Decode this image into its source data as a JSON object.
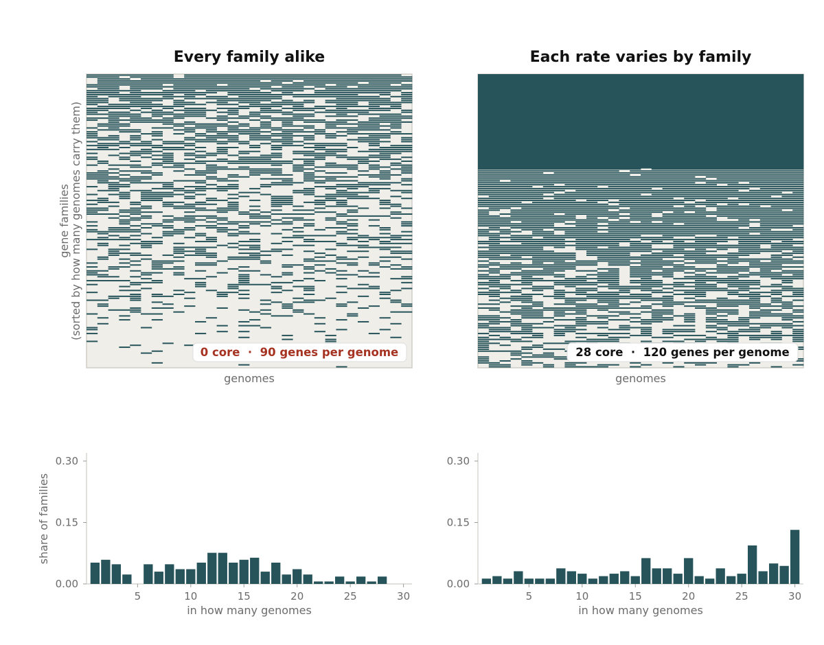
{
  "colors": {
    "cell_fill": "#26545a",
    "panel_background": "#f0eee9",
    "bar_fill": "#26545a",
    "highlight_text": "#a63322",
    "axis_text": "#6b6b6b",
    "title_text": "#111111"
  },
  "chart_data": [
    {
      "type": "heatmap",
      "title": "Every family alike",
      "xlabel": "genomes",
      "ylabel": [
        "gene families",
        "(sorted by how many genomes carry them)"
      ],
      "n_genomes": 30,
      "n_families": 150,
      "core_families": 0,
      "genes_per_genome": 90,
      "annotation": "0 core  ·  90 genes per genome",
      "annotation_color": "#a63322",
      "grid": false
    },
    {
      "type": "heatmap",
      "title": "Each rate varies by family",
      "xlabel": "genomes",
      "ylabel": [],
      "n_genomes": 30,
      "n_families": 150,
      "core_families": 28,
      "genes_per_genome": 120,
      "annotation": "28 core  ·  120 genes per genome",
      "annotation_color": "#111111",
      "grid": false
    },
    {
      "type": "bar",
      "title": "",
      "xlabel": "in how many genomes",
      "ylabel": "share of families",
      "x": [
        1,
        2,
        3,
        4,
        5,
        6,
        7,
        8,
        9,
        10,
        11,
        12,
        13,
        14,
        15,
        16,
        17,
        18,
        19,
        20,
        21,
        22,
        23,
        24,
        25,
        26,
        27,
        28,
        29,
        30
      ],
      "values": [
        0.052,
        0.059,
        0.048,
        0.023,
        0.0,
        0.048,
        0.03,
        0.048,
        0.036,
        0.036,
        0.052,
        0.076,
        0.076,
        0.052,
        0.059,
        0.064,
        0.03,
        0.052,
        0.023,
        0.036,
        0.023,
        0.006,
        0.006,
        0.018,
        0.006,
        0.018,
        0.006,
        0.018,
        0.0,
        0.0
      ],
      "xticks": [
        5,
        10,
        15,
        20,
        25,
        30
      ],
      "yticks": [
        "0.00",
        "0.15",
        "0.30"
      ],
      "xlim": [
        0.2,
        30.8
      ],
      "ylim": [
        0,
        0.32
      ]
    },
    {
      "type": "bar",
      "title": "",
      "xlabel": "in how many genomes",
      "ylabel": "",
      "x": [
        1,
        2,
        3,
        4,
        5,
        6,
        7,
        8,
        9,
        10,
        11,
        12,
        13,
        14,
        15,
        16,
        17,
        18,
        19,
        20,
        21,
        22,
        23,
        24,
        25,
        26,
        27,
        28,
        29,
        30
      ],
      "values": [
        0.013,
        0.019,
        0.013,
        0.031,
        0.013,
        0.013,
        0.013,
        0.038,
        0.031,
        0.025,
        0.013,
        0.019,
        0.025,
        0.031,
        0.019,
        0.063,
        0.038,
        0.038,
        0.025,
        0.063,
        0.019,
        0.013,
        0.038,
        0.019,
        0.025,
        0.094,
        0.031,
        0.05,
        0.044,
        0.132
      ],
      "xticks": [
        5,
        10,
        15,
        20,
        25,
        30
      ],
      "yticks": [
        "0.00",
        "0.15",
        "0.30"
      ],
      "xlim": [
        0.2,
        30.8
      ],
      "ylim": [
        0,
        0.32
      ]
    }
  ]
}
